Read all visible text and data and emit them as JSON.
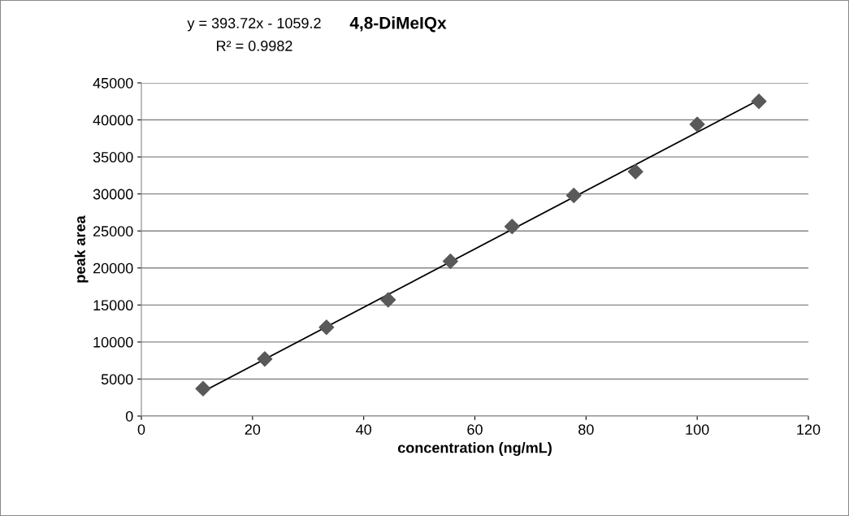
{
  "chart_data": {
    "type": "scatter",
    "title": "4,8-DiMeIQx",
    "xlabel": "concentration (ng/mL)",
    "ylabel": "peak area",
    "annotations": [
      "y = 393.72x - 1059.2",
      "R² = 0.9982"
    ],
    "x": [
      11.1,
      22.2,
      33.3,
      44.4,
      55.6,
      66.7,
      77.8,
      88.9,
      100,
      111.1
    ],
    "series": [
      {
        "color": "#595959",
        "marker": "diamond",
        "values": [
          3700,
          7700,
          12000,
          15700,
          20900,
          25600,
          29800,
          33000,
          39400,
          42500
        ]
      },
      {
        "type": "line",
        "color": "#000000",
        "marker": "none",
        "line_style": "solid",
        "x": [
          11.1,
          111.1
        ],
        "values": [
          3300,
          42700
        ]
      }
    ],
    "xlim": [
      0,
      120
    ],
    "xticks": [
      0,
      20,
      40,
      60,
      80,
      100,
      120
    ],
    "ylim": [
      0,
      45000
    ],
    "yticks": [
      0,
      5000,
      10000,
      15000,
      20000,
      25000,
      30000,
      35000,
      40000,
      45000
    ],
    "grid": "y",
    "legend": false
  }
}
